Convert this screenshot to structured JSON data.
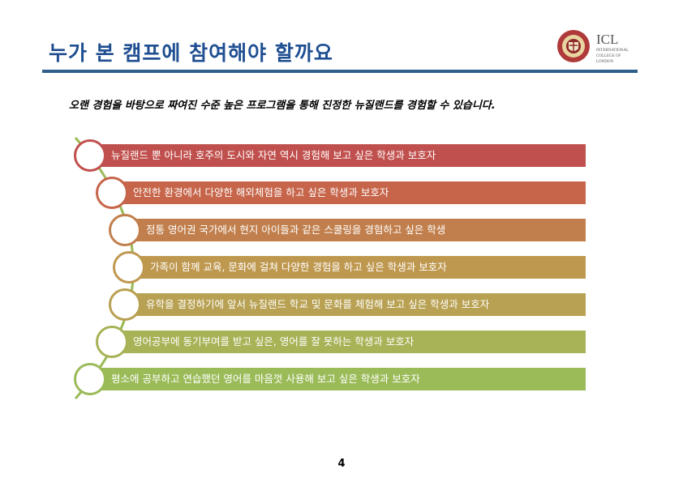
{
  "title": "누가 본 캠프에 참여해야 할까요",
  "subtitle": "오랜 경험을 바탕으로 짜여진 수준 높은 프로그램을 통해 진정한 뉴질랜드를 경험할 수 있습니다.",
  "logo": {
    "main": "ICL",
    "lines": [
      "INTERNATIONAL",
      "COLLEGE OF",
      "LONDON"
    ]
  },
  "items": [
    {
      "label": "뉴질랜드 뿐 아니라 호주의 도시와 자연 역시 경험해 보고 싶은 학생과 보호자",
      "color": "#C0504D"
    },
    {
      "label": "안전한 환경에서 다양한 해외체험을 하고 싶은 학생과 보호자",
      "color": "#C6654A"
    },
    {
      "label": "정통 영어권 국가에서 현지 아이들과 같은 스쿨링을 경험하고 싶은 학생",
      "color": "#C17F4D"
    },
    {
      "label": "가족이 함께 교육, 문화에 걸쳐 다양한 경험을 하고 싶은 학생과 보호자",
      "color": "#BF984F"
    },
    {
      "label": "유학을 결정하기에 앞서 뉴질랜드 학교 및 문화를 체험해 보고 싶은 학생과 보호자",
      "color": "#B8A152"
    },
    {
      "label": "영어공부에 동기부여를 받고 싶은, 영어를 잘 못하는 학생과 보호자",
      "color": "#A8B256"
    },
    {
      "label": "평소에 공부하고 연습했던 영어를 마음껏 사용해 보고 싶은 학생과 보호자",
      "color": "#9BBB59"
    }
  ],
  "page_number": "4"
}
